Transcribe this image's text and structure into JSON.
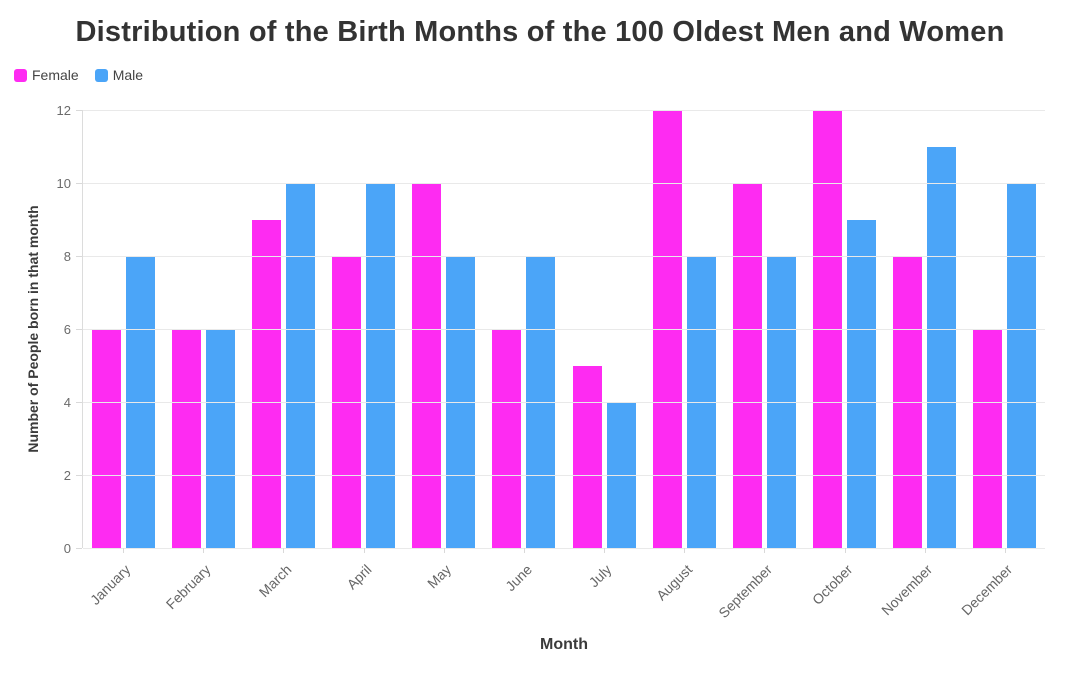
{
  "chart_data": {
    "type": "bar",
    "title": "Distribution of the Birth Months of the 100 Oldest Men and Women",
    "xlabel": "Month",
    "ylabel": "Number of People born in that month",
    "categories": [
      "January",
      "February",
      "March",
      "April",
      "May",
      "June",
      "July",
      "August",
      "September",
      "October",
      "November",
      "December"
    ],
    "series": [
      {
        "name": "Female",
        "color": "#fe2bf2",
        "values": [
          6,
          6,
          9,
          8,
          10,
          6,
          5,
          12,
          10,
          12,
          8,
          6
        ]
      },
      {
        "name": "Male",
        "color": "#4ba5f8",
        "values": [
          8,
          6,
          10,
          10,
          8,
          8,
          4,
          8,
          8,
          9,
          11,
          10
        ]
      }
    ],
    "ylim": [
      0,
      12
    ],
    "yticks": [
      0,
      2,
      4,
      6,
      8,
      10,
      12
    ],
    "grid": true,
    "legend_position": "top-left",
    "colors": {
      "title_text": "#333333",
      "tick_text": "#6b6b6b",
      "gridline": "#e9e9e9",
      "background": "#ffffff"
    }
  }
}
